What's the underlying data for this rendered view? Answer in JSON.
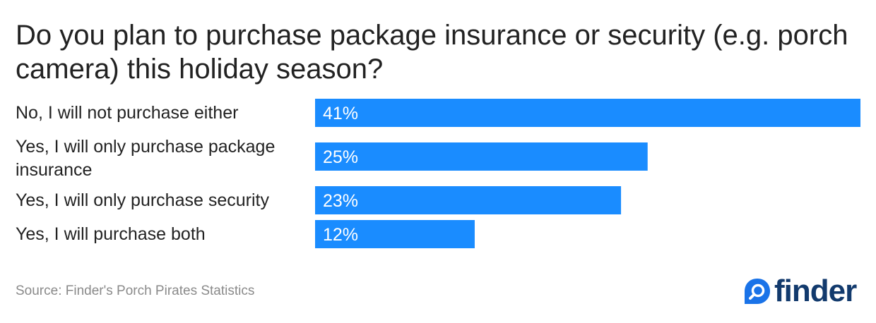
{
  "chart_data": {
    "type": "bar",
    "orientation": "horizontal",
    "title": "Do you plan to purchase package insurance or security (e.g. porch camera) this holiday season?",
    "categories": [
      "No, I will not purchase either",
      "Yes, I will only purchase package insurance",
      "Yes, I will only purchase security",
      "Yes, I will purchase both"
    ],
    "values": [
      41,
      25,
      23,
      12
    ],
    "value_labels": [
      "41%",
      "25%",
      "23%",
      "12%"
    ],
    "unit": "%",
    "xlim": [
      0,
      41
    ],
    "grid": false,
    "legend": "none",
    "bar_color": "#1a8cff"
  },
  "footer": {
    "source": "Source: Finder's Porch Pirates Statistics",
    "brand": "finder"
  },
  "colors": {
    "bar": "#1a8cff",
    "bar_text": "#ffffff",
    "brand_dark": "#123a6d",
    "brand_blue": "#1a73e8",
    "source_text": "#8a8a8a"
  },
  "icons": {
    "logo_mark": "finder-search-drop-icon"
  }
}
